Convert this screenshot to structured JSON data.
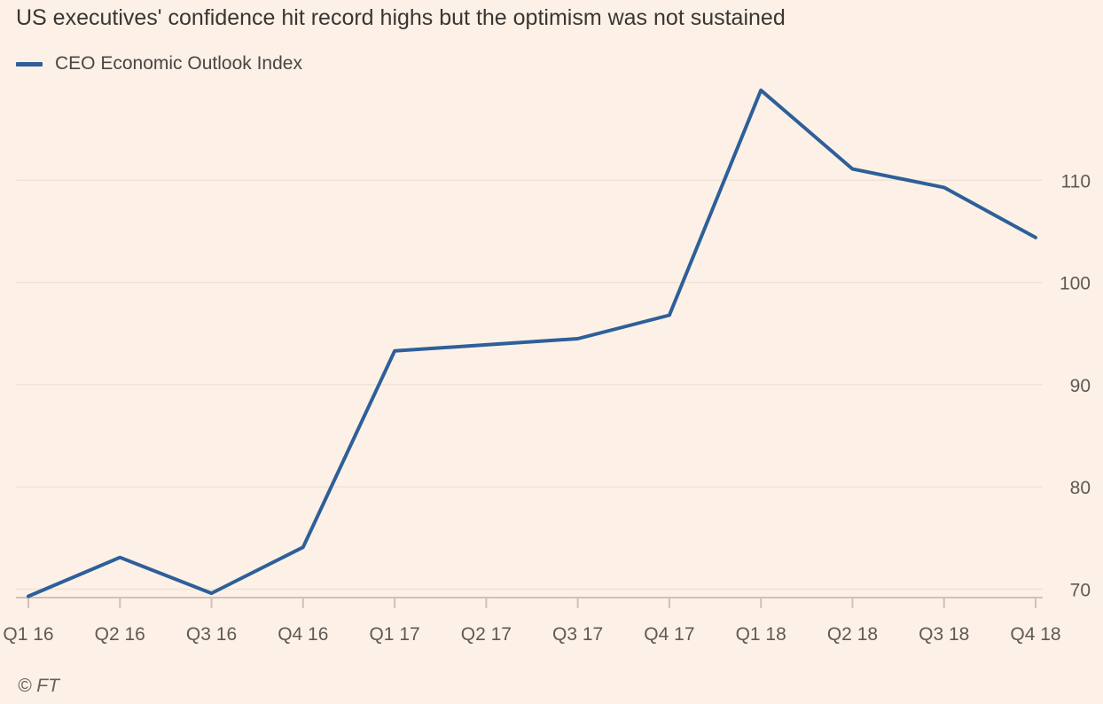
{
  "header": {
    "title": "US executives' confidence hit record highs but the optimism was not sustained"
  },
  "legend": {
    "series_label": "CEO Economic Outlook Index"
  },
  "footer": {
    "source": "© FT"
  },
  "colors": {
    "background": "#fdf1e7",
    "line": "#2e5f99",
    "grid": "#f1e2d6",
    "axis": "#cfc2b7",
    "tick_text": "#5f5955"
  },
  "chart_data": {
    "type": "line",
    "title": "US executives' confidence hit record highs but the optimism was not sustained",
    "xlabel": "",
    "ylabel": "",
    "categories": [
      "Q1 16",
      "Q2 16",
      "Q3 16",
      "Q4 16",
      "Q1 17",
      "Q2 17",
      "Q3 17",
      "Q4 17",
      "Q1 18",
      "Q2 18",
      "Q3 18",
      "Q4 18"
    ],
    "series": [
      {
        "name": "CEO Economic Outlook Index",
        "values": [
          69.3,
          73.1,
          69.6,
          74.1,
          93.3,
          93.9,
          94.5,
          96.8,
          118.8,
          111.1,
          109.3,
          104.4
        ]
      }
    ],
    "ylim": [
      69,
      120
    ],
    "yticks": [
      70,
      80,
      90,
      100,
      110
    ],
    "y_axis_side": "right",
    "grid": true,
    "legend_position": "top-left"
  }
}
